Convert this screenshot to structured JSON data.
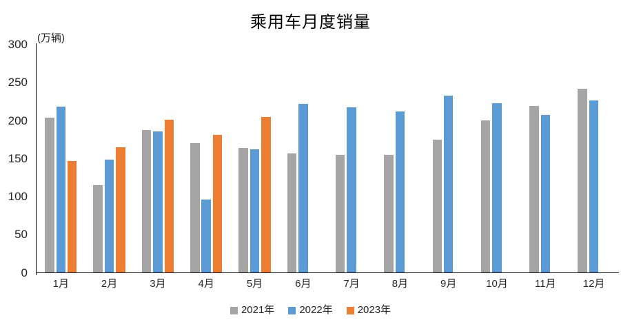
{
  "chart_data": {
    "type": "bar",
    "title": "乘用车月度销量",
    "ylabel": "(万辆)",
    "xlabel": "",
    "categories": [
      "1月",
      "2月",
      "3月",
      "4月",
      "5月",
      "6月",
      "7月",
      "8月",
      "9月",
      "10月",
      "11月",
      "12月"
    ],
    "series": [
      {
        "name": "2021年",
        "color": "#A5A5A5",
        "values": [
          204.5,
          115.6,
          187.4,
          170.4,
          164.6,
          156.9,
          155.1,
          155.2,
          175.1,
          200.7,
          219.2,
          242.2
        ]
      },
      {
        "name": "2022年",
        "color": "#5B9BD5",
        "values": [
          218.6,
          148.7,
          186.4,
          96.5,
          162.3,
          222.2,
          217.4,
          212.5,
          233.2,
          223.1,
          207.5,
          226.3
        ]
      },
      {
        "name": "2023年",
        "color": "#ED7D31",
        "values": [
          146.9,
          165.3,
          201.7,
          181.1,
          205.1,
          null,
          null,
          null,
          null,
          null,
          null,
          null
        ]
      }
    ],
    "ylim": [
      0,
      300
    ],
    "ytick_interval": 50,
    "grid": "off",
    "legend_position": "bottom",
    "background_color": "#FFFFFF",
    "axis_color": "#000000"
  }
}
